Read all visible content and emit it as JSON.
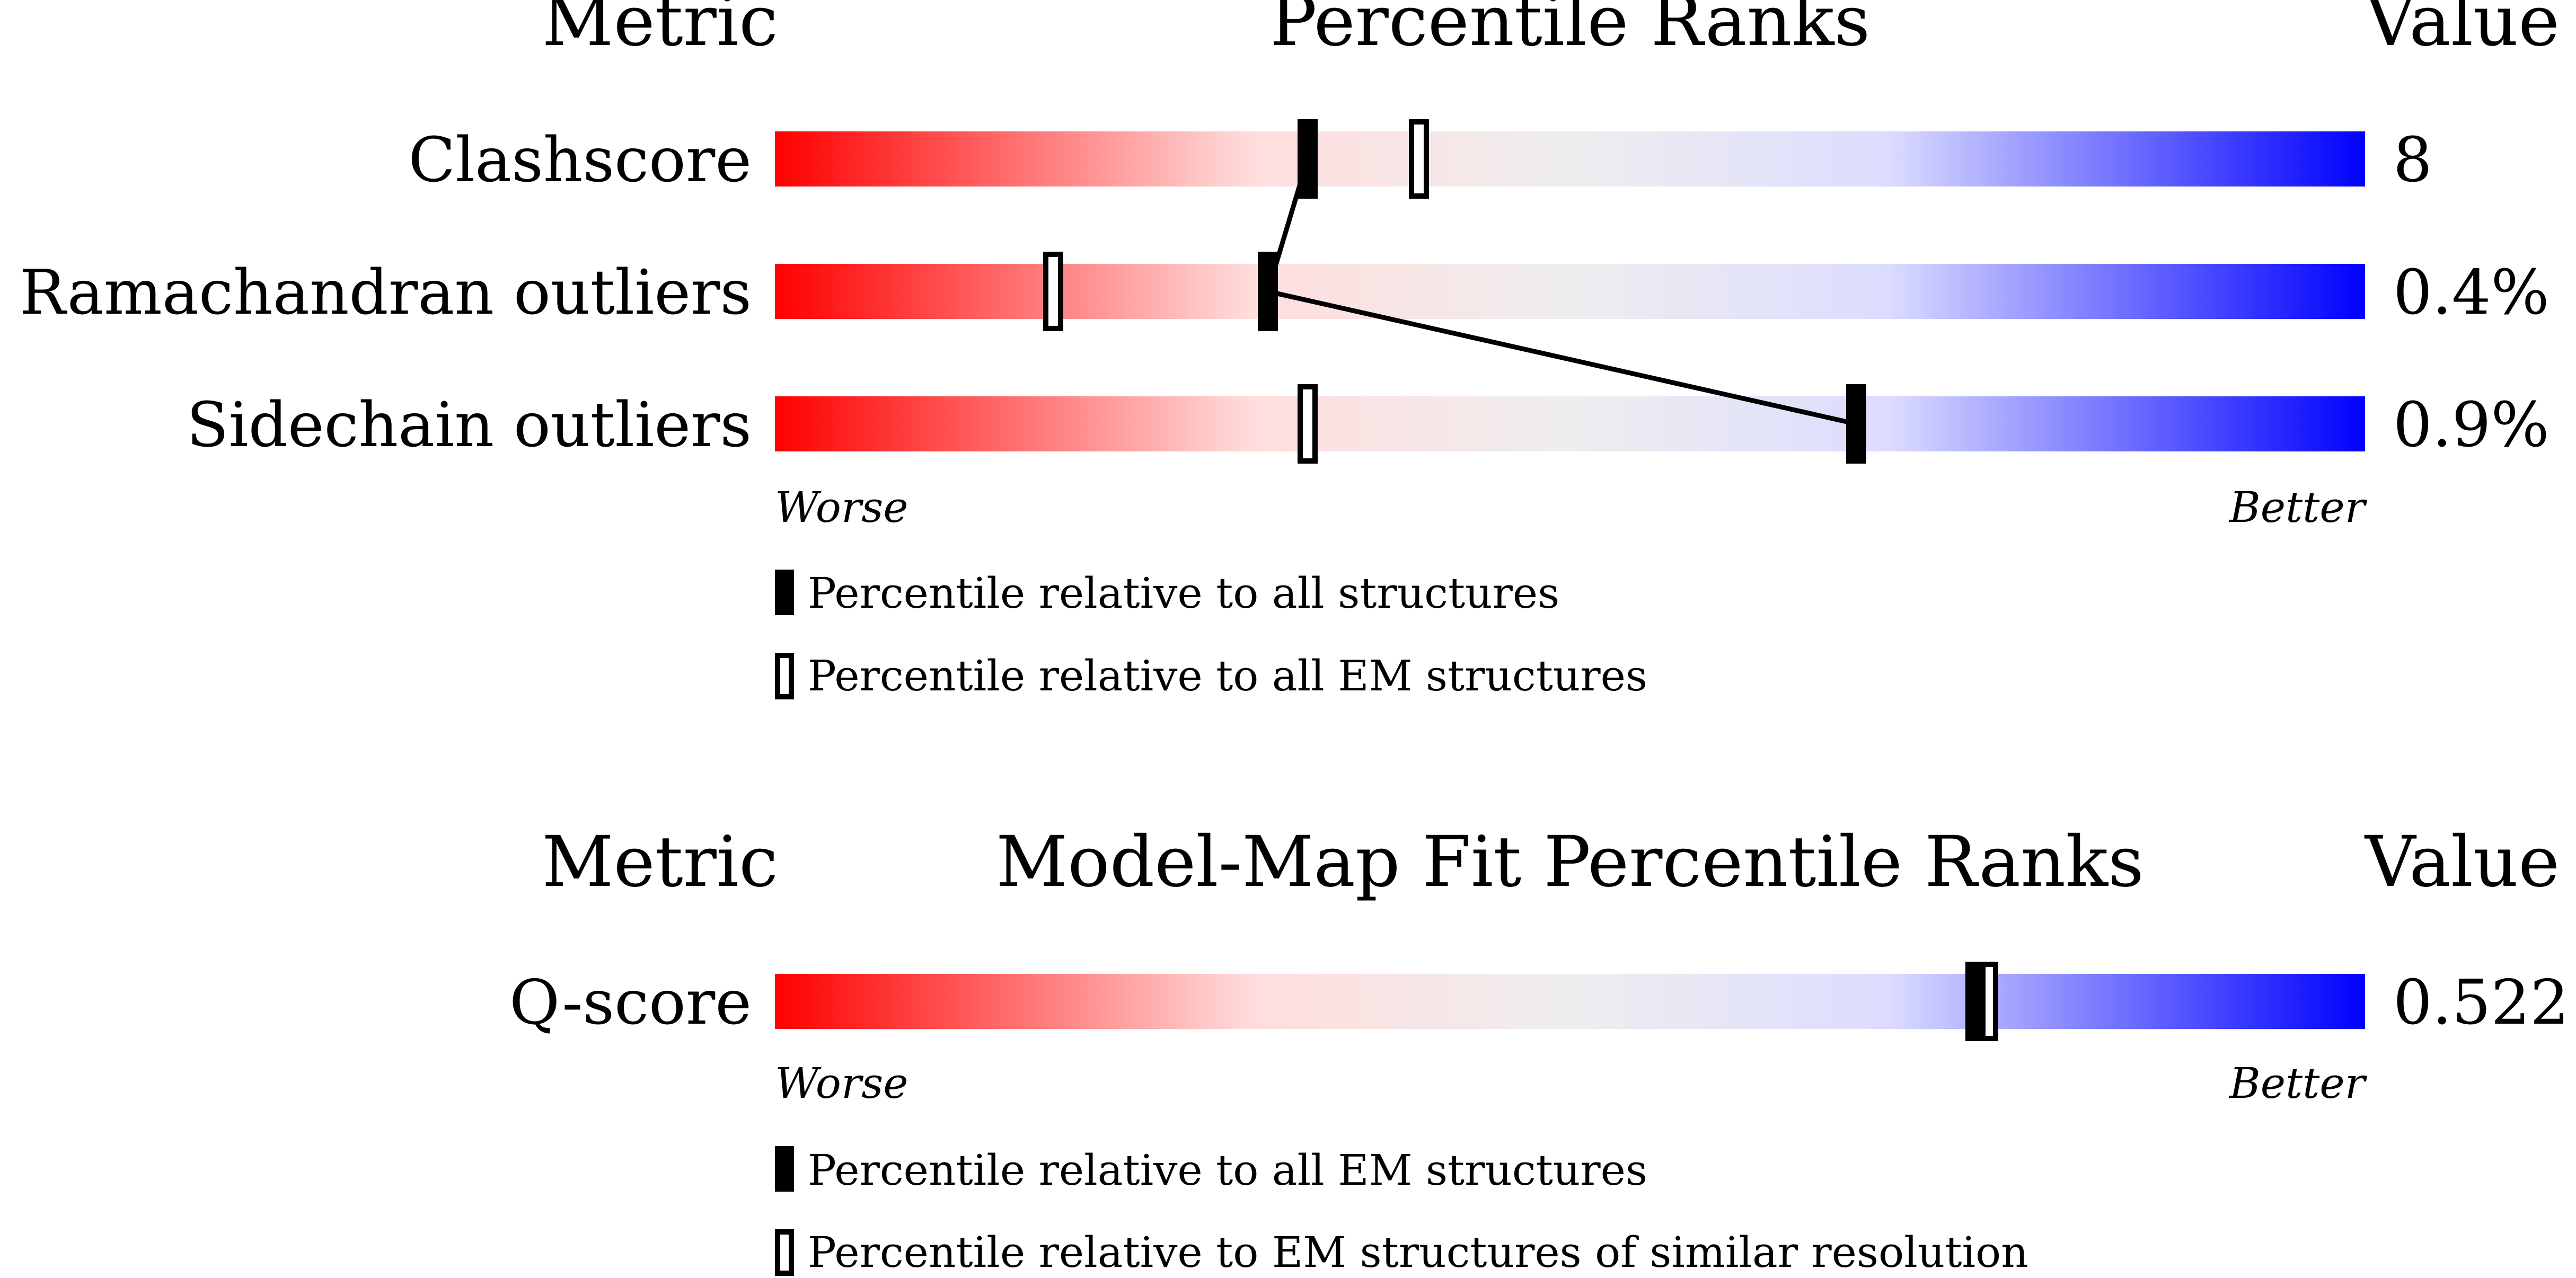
{
  "top_panel": {
    "header_metric": "Metric",
    "header_title": "Percentile Ranks",
    "header_value": "Value",
    "worse_label": "Worse",
    "better_label": "Better",
    "legend_filled": "Percentile relative to all structures",
    "legend_open": "Percentile relative to all EM structures"
  },
  "bottom_panel": {
    "header_metric": "Metric",
    "header_title": "Model-Map Fit Percentile Ranks",
    "header_value": "Value",
    "worse_label": "Worse",
    "better_label": "Better",
    "legend_filled": "Percentile relative to all EM structures",
    "legend_open": "Percentile relative to EM structures of similar resolution"
  },
  "colors": {
    "worse": "#ff0000",
    "mid_red": "#ffdddd",
    "neutral": "#eeeeee",
    "mid_blue": "#dcdcff",
    "better": "#0000ff",
    "marker": "#000000"
  },
  "chart_data": [
    {
      "type": "percentile_slider",
      "title": "Percentile Ranks",
      "xlim": [
        0,
        100
      ],
      "metrics": [
        {
          "name": "Clashscore",
          "value": "8",
          "percentile_all": 33.5,
          "percentile_em": 40.5
        },
        {
          "name": "Ramachandran outliers",
          "value": "0.4%",
          "percentile_all": 31,
          "percentile_em": 17.5
        },
        {
          "name": "Sidechain outliers",
          "value": "0.9%",
          "percentile_all": 68,
          "percentile_em": 33.5
        }
      ]
    },
    {
      "type": "percentile_slider",
      "title": "Model-Map Fit Percentile Ranks",
      "xlim": [
        0,
        100
      ],
      "metrics": [
        {
          "name": "Q-score",
          "value": "0.522",
          "percentile_all": 75.5,
          "percentile_em": 76.3
        }
      ]
    }
  ]
}
